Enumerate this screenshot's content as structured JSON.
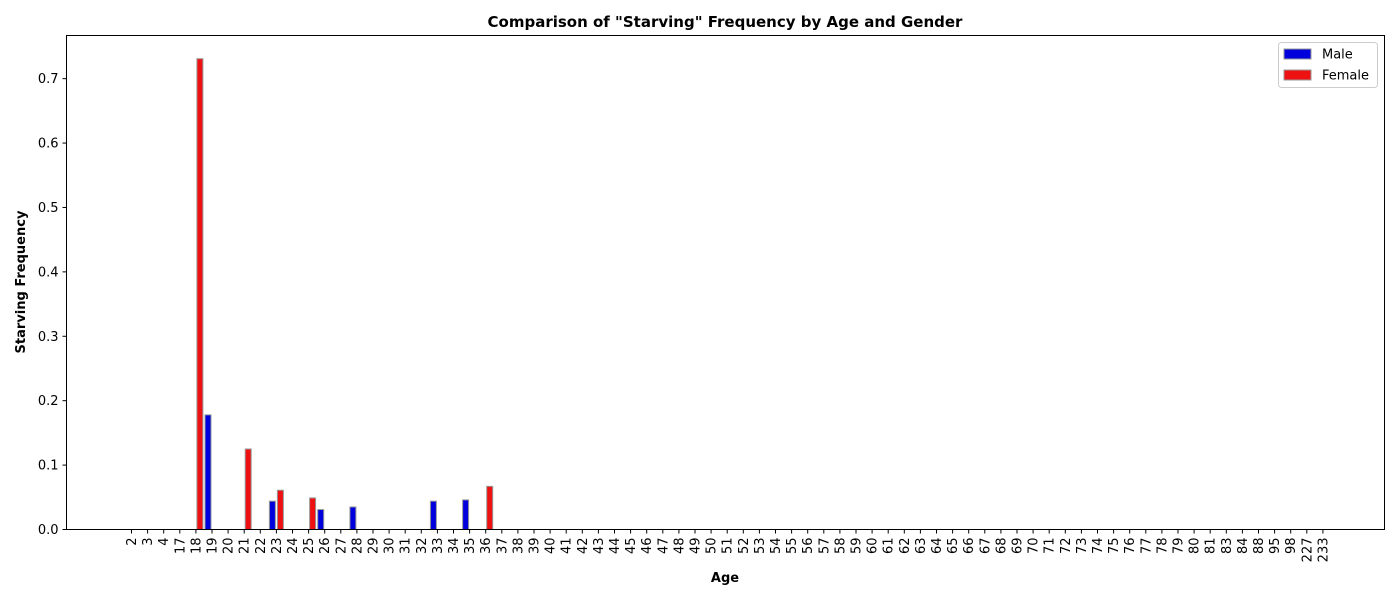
{
  "chart_data": {
    "type": "bar",
    "title": "Comparison of \"Starving\" Frequency by Age and Gender",
    "xlabel": "Age",
    "ylabel": "Starving Frequency",
    "ylim": [
      0,
      0.767
    ],
    "yticks": [
      0.0,
      0.1,
      0.2,
      0.3,
      0.4,
      0.5,
      0.6,
      0.7
    ],
    "ytick_labels": [
      "0.0",
      "0.1",
      "0.2",
      "0.3",
      "0.4",
      "0.5",
      "0.6",
      "0.7"
    ],
    "grid": false,
    "legend_position": "top-right",
    "categories": [
      "2",
      "3",
      "4",
      "17",
      "18",
      "19",
      "20",
      "21",
      "22",
      "23",
      "24",
      "25",
      "26",
      "27",
      "28",
      "29",
      "30",
      "31",
      "32",
      "33",
      "34",
      "35",
      "36",
      "37",
      "38",
      "39",
      "40",
      "41",
      "42",
      "43",
      "44",
      "45",
      "46",
      "47",
      "48",
      "49",
      "50",
      "51",
      "52",
      "53",
      "54",
      "55",
      "56",
      "57",
      "58",
      "59",
      "60",
      "61",
      "62",
      "63",
      "64",
      "65",
      "66",
      "67",
      "68",
      "69",
      "70",
      "71",
      "72",
      "73",
      "74",
      "75",
      "76",
      "77",
      "78",
      "79",
      "80",
      "81",
      "83",
      "84",
      "88",
      "95",
      "98",
      "227",
      "233"
    ],
    "series": [
      {
        "name": "Male",
        "color": "#0000dd",
        "values": [
          0,
          0,
          0,
          0,
          0,
          0.178,
          0,
          0,
          0,
          0.044,
          0,
          0,
          0.031,
          0,
          0.035,
          0,
          0,
          0,
          0,
          0.044,
          0,
          0.046,
          0,
          0,
          0,
          0,
          0,
          0,
          0,
          0,
          0,
          0,
          0,
          0,
          0,
          0,
          0,
          0,
          0,
          0,
          0,
          0,
          0,
          0,
          0,
          0,
          0,
          0,
          0,
          0,
          0,
          0,
          0,
          0,
          0,
          0,
          0,
          0,
          0,
          0,
          0,
          0,
          0,
          0,
          0,
          0,
          0,
          0,
          0,
          0,
          0,
          0,
          0,
          0,
          0
        ]
      },
      {
        "name": "Female",
        "color": "#ee1111",
        "values": [
          0,
          0,
          0,
          0,
          0.731,
          0,
          0,
          0.125,
          0,
          0.061,
          0,
          0.049,
          0,
          0,
          0,
          0,
          0,
          0,
          0,
          0,
          0,
          0,
          0.067,
          0,
          0,
          0,
          0,
          0,
          0,
          0,
          0,
          0,
          0,
          0,
          0,
          0,
          0,
          0,
          0,
          0,
          0,
          0,
          0,
          0,
          0,
          0,
          0,
          0,
          0,
          0,
          0,
          0,
          0,
          0,
          0,
          0,
          0,
          0,
          0,
          0,
          0,
          0,
          0,
          0,
          0,
          0,
          0,
          0,
          0,
          0,
          0,
          0,
          0,
          0,
          0
        ]
      }
    ]
  }
}
